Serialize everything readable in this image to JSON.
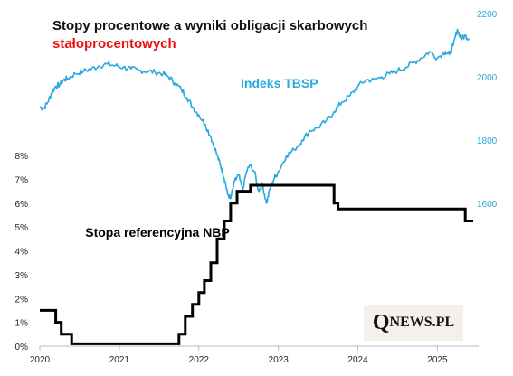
{
  "title": "Stopy procentowe a wyniki obligacji skarbowych",
  "subtitle": "stałoprocentowych",
  "colors": {
    "title": "#111111",
    "subtitle": "#ee1111",
    "tbsp": "#29a8df",
    "rate": "#000000",
    "watermark_bg": "#f4f1ea"
  },
  "watermark": {
    "q": "Q",
    "rest": "NEWS.PL"
  },
  "chart_data": {
    "type": "line",
    "title": "Stopy procentowe a wyniki obligacji skarbowych",
    "subtitle": "stałoprocentowych",
    "xlabel": "",
    "x_ticks": [
      "2020",
      "2021",
      "2022",
      "2023",
      "2024",
      "2025"
    ],
    "xlim": [
      2020.0,
      2025.45
    ],
    "left_axis": {
      "ticks": [
        "0%",
        "1%",
        "2%",
        "3%",
        "4%",
        "5%",
        "6%",
        "7%",
        "8%"
      ],
      "ylim": [
        0,
        8
      ]
    },
    "right_axis": {
      "ticks": [
        "1600",
        "1800",
        "2000",
        "2200"
      ],
      "ylim": [
        1400,
        2200
      ]
    },
    "grid": false,
    "legend": "inline labels",
    "series": [
      {
        "name": "Indeks TBSP",
        "axis": "right",
        "x": [
          2020.0,
          2020.05,
          2020.1,
          2020.15,
          2020.2,
          2020.25,
          2020.3,
          2020.35,
          2020.45,
          2020.55,
          2020.65,
          2020.75,
          2020.85,
          2020.95,
          2021.05,
          2021.15,
          2021.25,
          2021.35,
          2021.45,
          2021.55,
          2021.62,
          2021.7,
          2021.78,
          2021.85,
          2021.92,
          2022.0,
          2022.08,
          2022.15,
          2022.22,
          2022.27,
          2022.3,
          2022.33,
          2022.36,
          2022.4,
          2022.45,
          2022.5,
          2022.55,
          2022.6,
          2022.64,
          2022.7,
          2022.75,
          2022.8,
          2022.85,
          2022.9,
          2022.95,
          2023.0,
          2023.1,
          2023.2,
          2023.3,
          2023.4,
          2023.5,
          2023.6,
          2023.7,
          2023.8,
          2023.9,
          2024.0,
          2024.1,
          2024.2,
          2024.3,
          2024.4,
          2024.5,
          2024.6,
          2024.7,
          2024.8,
          2024.9,
          2025.0,
          2025.1,
          2025.15,
          2025.2,
          2025.25,
          2025.3,
          2025.35,
          2025.4
        ],
        "values": [
          1905,
          1900,
          1920,
          1950,
          1970,
          1975,
          1990,
          1995,
          2010,
          2018,
          2025,
          2035,
          2040,
          2035,
          2030,
          2025,
          2020,
          2018,
          2015,
          2010,
          2000,
          1980,
          1960,
          1935,
          1905,
          1880,
          1850,
          1810,
          1760,
          1720,
          1700,
          1670,
          1630,
          1615,
          1670,
          1690,
          1640,
          1700,
          1720,
          1700,
          1640,
          1660,
          1600,
          1650,
          1680,
          1700,
          1750,
          1770,
          1800,
          1830,
          1840,
          1860,
          1890,
          1920,
          1940,
          1970,
          1990,
          1990,
          2000,
          2010,
          2020,
          2030,
          2045,
          2060,
          2080,
          2060,
          2080,
          2070,
          2100,
          2150,
          2120,
          2130,
          2120
        ]
      },
      {
        "name": "Stopa referencyjna NBP",
        "axis": "left",
        "step": true,
        "x": [
          2020.0,
          2020.2,
          2020.27,
          2020.4,
          2021.75,
          2021.83,
          2021.92,
          2022.0,
          2022.07,
          2022.15,
          2022.23,
          2022.32,
          2022.4,
          2022.48,
          2022.57,
          2022.65,
          2022.75,
          2023.7,
          2023.75,
          2025.35,
          2025.45
        ],
        "values": [
          1.5,
          1.0,
          0.5,
          0.1,
          0.5,
          1.25,
          1.75,
          2.25,
          2.75,
          3.5,
          4.5,
          5.25,
          6.0,
          6.5,
          6.5,
          6.75,
          6.75,
          6.0,
          5.75,
          5.25,
          5.25
        ]
      }
    ]
  }
}
